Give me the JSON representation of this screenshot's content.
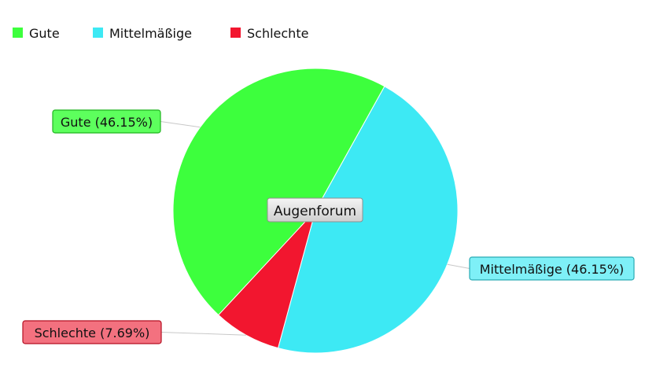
{
  "chart_data": {
    "type": "pie",
    "title": "",
    "center_label": "Augenforum",
    "legend_position": "top-left",
    "slices": [
      {
        "name": "Gute",
        "value": 46.15,
        "label": "Gute (46.15%)",
        "color": "#3dff3d",
        "label_fill": "#5dff5d",
        "label_stroke": "#1fb51f"
      },
      {
        "name": "Mittelmäßige",
        "value": 46.15,
        "label": "Mittelmäßige (46.15%)",
        "color": "#3de9f4",
        "label_fill": "#7ef0f7",
        "label_stroke": "#2aaab3"
      },
      {
        "name": "Schlechte",
        "value": 7.69,
        "label": "Schlechte (7.69%)",
        "color": "#f2162f",
        "label_fill": "#f3717f",
        "label_stroke": "#b50f22"
      }
    ]
  }
}
